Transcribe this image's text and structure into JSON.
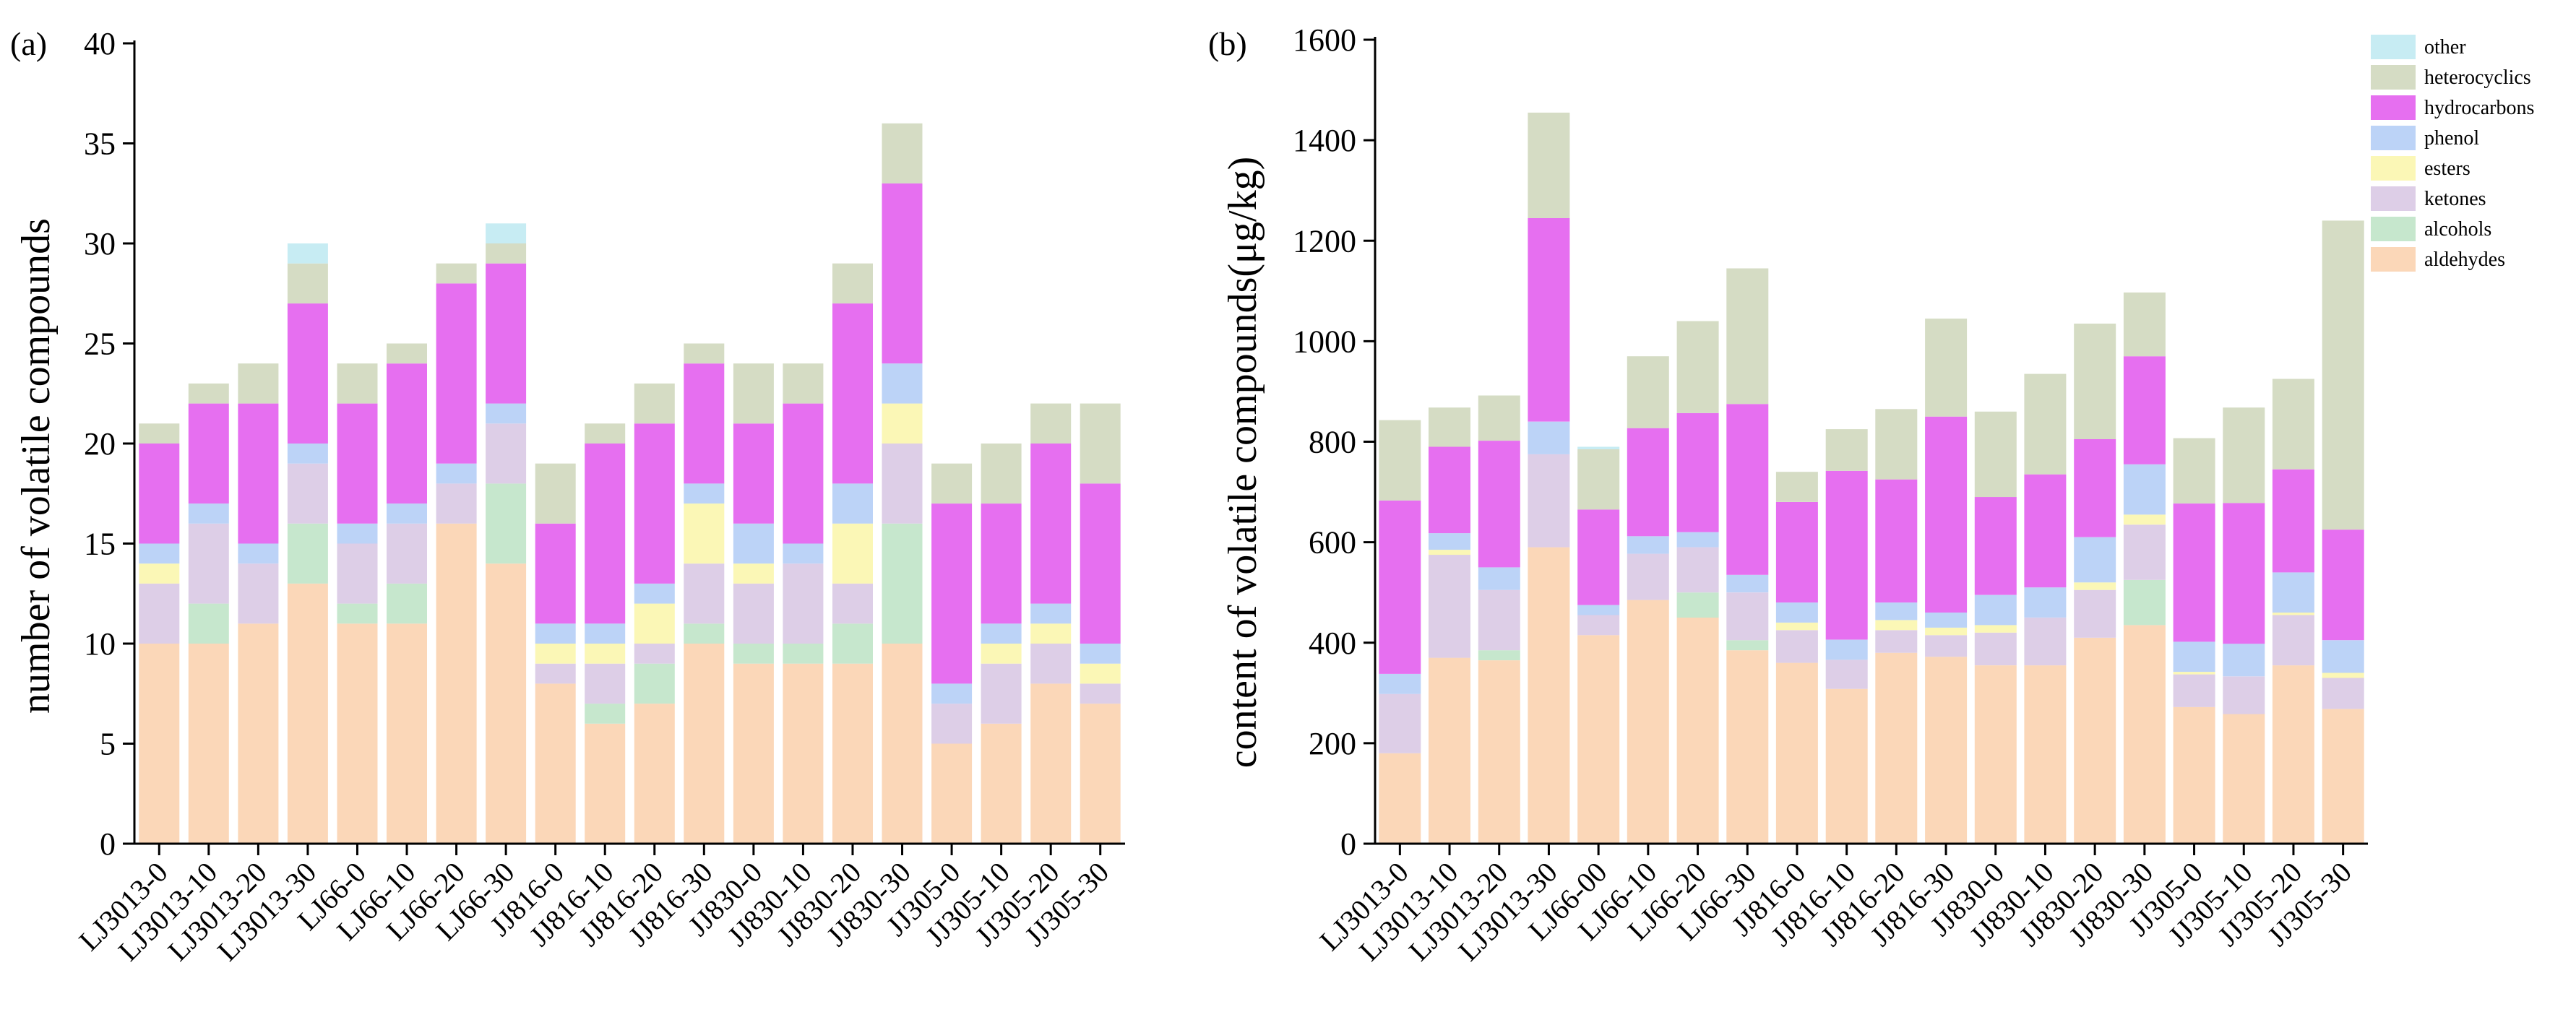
{
  "legend": [
    {
      "key": "other",
      "label": "other",
      "color": "#c7ecf3"
    },
    {
      "key": "heterocyclics",
      "label": "heterocyclics",
      "color": "#d5dcc4"
    },
    {
      "key": "hydrocarbons",
      "label": "hydrocarbons",
      "color": "#e66ff0"
    },
    {
      "key": "phenol",
      "label": "phenol",
      "color": "#bcd3f7"
    },
    {
      "key": "esters",
      "label": "esters",
      "color": "#fbf7b6"
    },
    {
      "key": "ketones",
      "label": "ketones",
      "color": "#ddcee7"
    },
    {
      "key": "alcohols",
      "label": "alcohols",
      "color": "#c6e7cd"
    },
    {
      "key": "aldehydes",
      "label": "aldehydes",
      "color": "#fbd7b8"
    }
  ],
  "chart_data": [
    {
      "type": "bar",
      "stacked": true,
      "panel_label": "(a)",
      "ylabel": "number of volatile compounds",
      "xlabel": "",
      "ylim": [
        0,
        40
      ],
      "yticks": [
        0,
        5,
        10,
        15,
        20,
        25,
        30,
        35,
        40
      ],
      "grid": false,
      "legend_placement": "top-right (shared, on panel b)",
      "categories": [
        "LJ3013-0",
        "LJ3013-10",
        "LJ3013-20",
        "LJ3013-30",
        "LJ66-0",
        "LJ66-10",
        "LJ66-20",
        "LJ66-30",
        "JJ816-0",
        "JJ816-10",
        "JJ816-20",
        "JJ816-30",
        "JJ830-0",
        "JJ830-10",
        "JJ830-20",
        "JJ830-30",
        "JJ305-0",
        "JJ305-10",
        "JJ305-20",
        "JJ305-30"
      ],
      "series": [
        {
          "name": "aldehydes",
          "values": [
            10,
            10,
            11,
            13,
            11,
            11,
            16,
            14,
            8,
            6,
            7,
            10,
            9,
            9,
            9,
            10,
            5,
            6,
            8,
            7
          ]
        },
        {
          "name": "alcohols",
          "values": [
            0,
            2,
            0,
            3,
            1,
            2,
            0,
            4,
            0,
            1,
            2,
            1,
            1,
            1,
            2,
            6,
            0,
            0,
            0,
            0
          ]
        },
        {
          "name": "ketones",
          "values": [
            3,
            4,
            3,
            3,
            3,
            3,
            2,
            3,
            1,
            2,
            1,
            3,
            3,
            4,
            2,
            4,
            2,
            3,
            2,
            1
          ]
        },
        {
          "name": "esters",
          "values": [
            1,
            0,
            0,
            0,
            0,
            0,
            0,
            0,
            1,
            1,
            2,
            3,
            1,
            0,
            3,
            2,
            0,
            1,
            1,
            1
          ]
        },
        {
          "name": "phenol",
          "values": [
            1,
            1,
            1,
            1,
            1,
            1,
            1,
            1,
            1,
            1,
            1,
            1,
            2,
            1,
            2,
            2,
            1,
            1,
            1,
            1
          ]
        },
        {
          "name": "hydrocarbons",
          "values": [
            5,
            5,
            7,
            7,
            6,
            7,
            9,
            7,
            5,
            9,
            8,
            6,
            5,
            7,
            9,
            9,
            9,
            6,
            8,
            8
          ]
        },
        {
          "name": "heterocyclics",
          "values": [
            1,
            1,
            2,
            2,
            2,
            1,
            1,
            1,
            3,
            1,
            2,
            1,
            3,
            2,
            2,
            3,
            2,
            3,
            2,
            4
          ]
        },
        {
          "name": "other",
          "values": [
            0,
            0,
            0,
            1,
            0,
            0,
            0,
            1,
            0,
            0,
            0,
            0,
            0,
            0,
            0,
            0,
            0,
            0,
            0,
            0
          ]
        }
      ]
    },
    {
      "type": "bar",
      "stacked": true,
      "panel_label": "(b)",
      "ylabel": "content of volatile compounds(μg/kg)",
      "xlabel": "",
      "ylim": [
        0,
        1600
      ],
      "yticks": [
        0,
        200,
        400,
        600,
        800,
        1000,
        1200,
        1400,
        1600
      ],
      "grid": false,
      "legend_placement": "top-right",
      "categories": [
        "LJ3013-0",
        "LJ3013-10",
        "LJ3013-20",
        "LJ3013-30",
        "LJ66-00",
        "LJ66-10",
        "LJ66-20",
        "LJ66-30",
        "JJ816-0",
        "JJ816-10",
        "JJ816-20",
        "JJ816-30",
        "JJ830-0",
        "JJ830-10",
        "JJ830-20",
        "JJ830-30",
        "JJ305-0",
        "JJ305-10",
        "JJ305-20",
        "JJ305-30"
      ],
      "series": [
        {
          "name": "aldehydes",
          "values": [
            180,
            370,
            365,
            590,
            415,
            485,
            450,
            385,
            360,
            308,
            380,
            372,
            355,
            355,
            410,
            435,
            272,
            258,
            355,
            268
          ]
        },
        {
          "name": "alcohols",
          "values": [
            0,
            0,
            20,
            0,
            0,
            0,
            50,
            20,
            0,
            0,
            0,
            0,
            0,
            0,
            0,
            90,
            0,
            0,
            0,
            0
          ]
        },
        {
          "name": "ketones",
          "values": [
            118,
            205,
            120,
            185,
            40,
            92,
            90,
            95,
            65,
            58,
            45,
            43,
            65,
            95,
            95,
            110,
            65,
            75,
            100,
            62
          ]
        },
        {
          "name": "esters",
          "values": [
            0,
            10,
            0,
            0,
            0,
            0,
            0,
            0,
            15,
            0,
            20,
            15,
            15,
            0,
            15,
            20,
            5,
            0,
            5,
            10
          ]
        },
        {
          "name": "phenol",
          "values": [
            40,
            33,
            45,
            65,
            20,
            35,
            30,
            35,
            40,
            40,
            35,
            30,
            60,
            60,
            90,
            100,
            60,
            65,
            80,
            65
          ]
        },
        {
          "name": "hydrocarbons",
          "values": [
            345,
            172,
            252,
            405,
            190,
            215,
            237,
            340,
            200,
            336,
            245,
            390,
            195,
            225,
            195,
            215,
            275,
            280,
            205,
            220
          ]
        },
        {
          "name": "heterocyclics",
          "values": [
            160,
            78,
            90,
            210,
            120,
            143,
            183,
            270,
            60,
            83,
            140,
            195,
            170,
            200,
            230,
            127,
            130,
            190,
            180,
            615
          ]
        },
        {
          "name": "other",
          "values": [
            0,
            0,
            0,
            0,
            5,
            0,
            0,
            0,
            0,
            0,
            0,
            0,
            0,
            0,
            0,
            0,
            0,
            0,
            0,
            0
          ]
        }
      ]
    }
  ]
}
